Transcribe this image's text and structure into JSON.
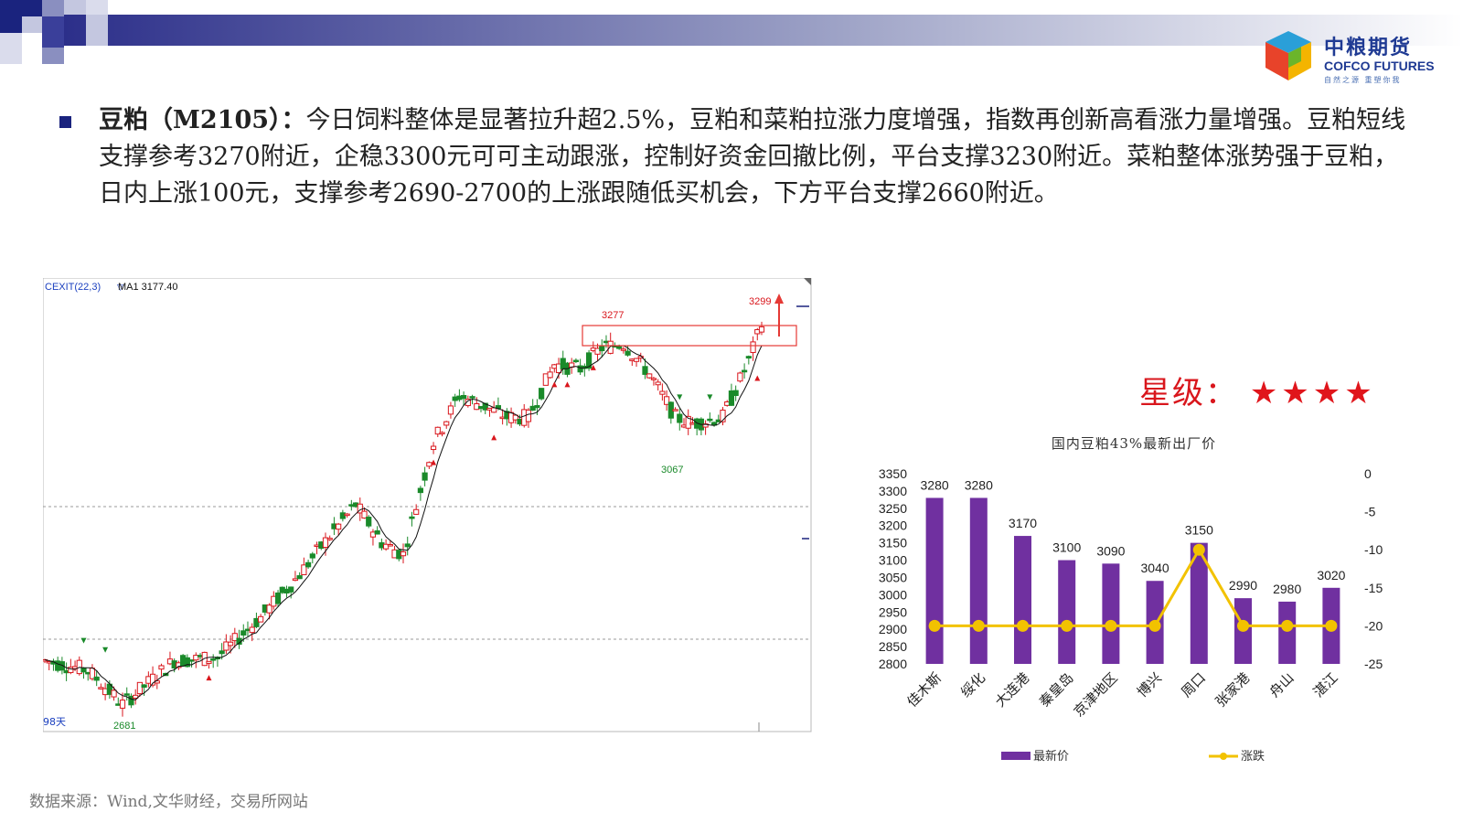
{
  "header": {
    "logo_cn": "中粮期货",
    "logo_en": "COFCO FUTURES",
    "logo_sub": "自然之源 重塑你我"
  },
  "commentary": {
    "lead": "豆粕（M2105）：",
    "text": "今日饲料整体是显著拉升超2.5%，豆粕和菜粕拉涨力度增强，指数再创新高看涨力量增强。豆粕短线支撑参考3270附近，企稳3300元可可主动跟涨，控制好资金回撤比例，平台支撑3230附近。菜粕整体涨势强于豆粕，日内上涨100元，支撑参考2690-2700的上涨跟随低买机会，下方平台支撑2660附近。"
  },
  "rating": {
    "label": "星级：",
    "stars": "★★★★",
    "count": 4
  },
  "kline": {
    "indicator": "CEXIT(22,3)",
    "ma_label": "MA1 3177.40",
    "period_label": "98天",
    "labels": {
      "low_start": "2681",
      "peak1": "3277",
      "trough": "3067",
      "peak2": "3299"
    },
    "colors": {
      "up": "#d9161c",
      "down": "#1a8a2a",
      "ma": "#111111"
    }
  },
  "chart_data": {
    "type": "bar",
    "title": "国内豆粕43%最新出厂价",
    "categories": [
      "佳木斯",
      "绥化",
      "大连港",
      "秦皇岛",
      "京津地区",
      "博兴",
      "周口",
      "张家港",
      "舟山",
      "湛江"
    ],
    "series": [
      {
        "name": "最新价",
        "type": "bar",
        "axis": "left",
        "color": "#7030a0",
        "values": [
          3280,
          3280,
          3170,
          3100,
          3090,
          3040,
          3150,
          2990,
          2980,
          3020
        ]
      },
      {
        "name": "涨跌",
        "type": "line",
        "axis": "right",
        "color": "#f2c200",
        "values": [
          -20,
          -20,
          -20,
          -20,
          -20,
          -20,
          -10,
          -20,
          -20,
          -20
        ]
      }
    ],
    "y_left": {
      "min": 2800,
      "max": 3350,
      "step": 50,
      "ticks": [
        "3350",
        "3300",
        "3250",
        "3200",
        "3150",
        "3100",
        "3050",
        "3000",
        "2950",
        "2900",
        "2850",
        "2800"
      ]
    },
    "y_right": {
      "min": -25,
      "max": 0,
      "step": 5,
      "ticks": [
        "0",
        "-5",
        "-10",
        "-15",
        "-20",
        "-25"
      ]
    },
    "legend_position": "bottom",
    "grid": false
  },
  "footer": {
    "source": "数据来源：Wind,文华财经，交易所网站"
  }
}
